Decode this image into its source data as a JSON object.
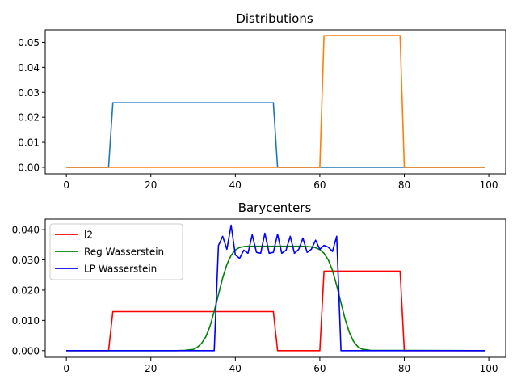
{
  "chart_data": [
    {
      "type": "line",
      "title": "Distributions",
      "xlabel": "",
      "ylabel": "",
      "xlim": [
        -5,
        104
      ],
      "ylim": [
        -0.0026,
        0.055
      ],
      "xticks": [
        0,
        20,
        40,
        60,
        80,
        100
      ],
      "xtick_labels": [
        "0",
        "20",
        "40",
        "60",
        "80",
        "100"
      ],
      "yticks": [
        0,
        0.01,
        0.02,
        0.03,
        0.04,
        0.05
      ],
      "ytick_labels": [
        "0.00",
        "0.01",
        "0.02",
        "0.03",
        "0.04",
        "0.05"
      ],
      "grid": false,
      "legend": false,
      "series": [
        {
          "color": "#1f77b4",
          "x": [
            0,
            10,
            11,
            49,
            50,
            99
          ],
          "y": [
            0,
            0,
            0.0258,
            0.0258,
            0,
            0
          ]
        },
        {
          "color": "#ff7f0e",
          "x": [
            0,
            60,
            61,
            79,
            80,
            99
          ],
          "y": [
            0,
            0,
            0.0527,
            0.0527,
            0,
            0
          ]
        }
      ]
    },
    {
      "type": "line",
      "title": "Barycenters",
      "xlabel": "",
      "ylabel": "",
      "xlim": [
        -5,
        104
      ],
      "ylim": [
        -0.0022,
        0.0435
      ],
      "xticks": [
        0,
        20,
        40,
        60,
        80,
        100
      ],
      "xtick_labels": [
        "0",
        "20",
        "40",
        "60",
        "80",
        "100"
      ],
      "yticks": [
        0,
        0.01,
        0.02,
        0.03,
        0.04
      ],
      "ytick_labels": [
        "0.000",
        "0.010",
        "0.020",
        "0.030",
        "0.040"
      ],
      "grid": false,
      "legend": "upper-left",
      "series": [
        {
          "name": "l2",
          "color": "#ff0000",
          "x": [
            0,
            10,
            11,
            49,
            50,
            60,
            61,
            79,
            80,
            99
          ],
          "y": [
            0,
            0,
            0.0129,
            0.0129,
            0,
            0,
            0.0263,
            0.0263,
            0,
            0
          ]
        },
        {
          "name": "Reg Wasserstein",
          "color": "#008000",
          "x": [
            0,
            26,
            28,
            30,
            31,
            32,
            33,
            34,
            35,
            36,
            37,
            38,
            39,
            40,
            41,
            42,
            43,
            44,
            50,
            56,
            58,
            59,
            60,
            61,
            62,
            63,
            64,
            65,
            66,
            67,
            68,
            69,
            70,
            72,
            99
          ],
          "y": [
            0,
            0,
            0.0001,
            0.0004,
            0.0011,
            0.0024,
            0.0045,
            0.008,
            0.013,
            0.0185,
            0.024,
            0.0285,
            0.0315,
            0.0333,
            0.0341,
            0.0344,
            0.0345,
            0.0345,
            0.0345,
            0.0345,
            0.0343,
            0.034,
            0.0334,
            0.0322,
            0.03,
            0.0265,
            0.0215,
            0.0158,
            0.0103,
            0.006,
            0.003,
            0.0013,
            0.0005,
            0.0001,
            0
          ]
        },
        {
          "name": "LP Wasserstein",
          "color": "#0000ff",
          "x": [
            0,
            35,
            36,
            37,
            38,
            39,
            40,
            41,
            42,
            43,
            44,
            45,
            46,
            47,
            48,
            49,
            50,
            51,
            52,
            53,
            54,
            55,
            56,
            57,
            58,
            59,
            60,
            61,
            62,
            63,
            64,
            65,
            99
          ],
          "y": [
            0,
            0,
            0.0347,
            0.0378,
            0.0335,
            0.0415,
            0.0317,
            0.0305,
            0.0332,
            0.0322,
            0.0383,
            0.0325,
            0.0322,
            0.0388,
            0.0322,
            0.0325,
            0.0385,
            0.0322,
            0.0332,
            0.0378,
            0.0322,
            0.0335,
            0.0372,
            0.0325,
            0.0335,
            0.0365,
            0.0335,
            0.0348,
            0.0342,
            0.0328,
            0.0378,
            0,
            0
          ]
        }
      ]
    }
  ]
}
